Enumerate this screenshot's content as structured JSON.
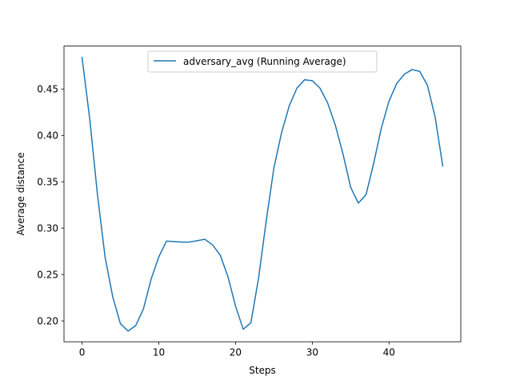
{
  "chart_data": {
    "type": "line",
    "title": "",
    "xlabel": "Steps",
    "ylabel": "Average distance",
    "xlim": [
      -2.35,
      49.35
    ],
    "ylim": [
      0.1775,
      0.4963
    ],
    "xticks": [
      0,
      10,
      20,
      30,
      40
    ],
    "yticks": [
      0.2,
      0.25,
      0.3,
      0.35,
      0.4,
      0.45
    ],
    "xtick_labels": [
      "0",
      "10",
      "20",
      "30",
      "40"
    ],
    "ytick_labels": [
      "0.20",
      "0.25",
      "0.30",
      "0.35",
      "0.40",
      "0.45"
    ],
    "grid": false,
    "legend": {
      "placement": "upper center",
      "entries": [
        "adversary_avg (Running Average)"
      ]
    },
    "series": [
      {
        "name": "adversary_avg (Running Average)",
        "color": "#1f77b4",
        "x": [
          0,
          1,
          2,
          3,
          4,
          5,
          6,
          7,
          8,
          9,
          10,
          11,
          12,
          13,
          14,
          15,
          16,
          17,
          18,
          19,
          20,
          21,
          22,
          23,
          24,
          25,
          26,
          27,
          28,
          29,
          30,
          31,
          32,
          33,
          34,
          35,
          36,
          37,
          38,
          39,
          40,
          41,
          42,
          43,
          44,
          45,
          46,
          47
        ],
        "values": [
          0.484,
          0.418,
          0.337,
          0.269,
          0.226,
          0.197,
          0.189,
          0.195,
          0.213,
          0.245,
          0.269,
          0.286,
          0.2855,
          0.285,
          0.285,
          0.2865,
          0.288,
          0.282,
          0.271,
          0.248,
          0.216,
          0.191,
          0.198,
          0.246,
          0.308,
          0.365,
          0.403,
          0.432,
          0.451,
          0.46,
          0.459,
          0.451,
          0.435,
          0.411,
          0.38,
          0.344,
          0.327,
          0.336,
          0.37,
          0.408,
          0.437,
          0.456,
          0.466,
          0.471,
          0.469,
          0.454,
          0.42,
          0.367
        ]
      }
    ]
  }
}
